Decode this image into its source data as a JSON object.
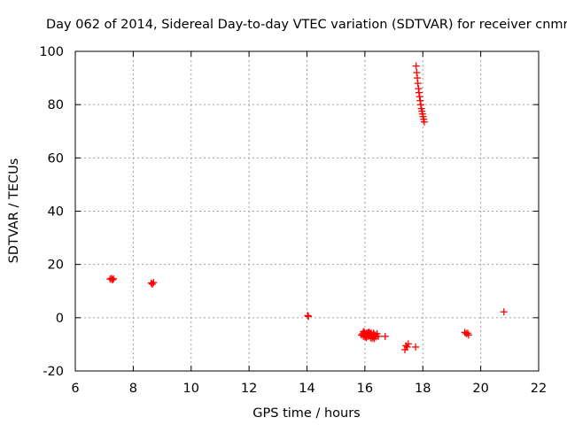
{
  "chart_data": {
    "type": "scatter",
    "title": "Day 062 of 2014, Sidereal Day-to-day VTEC variation (SDTVAR) for receiver cnmr",
    "xlabel": "GPS time / hours",
    "ylabel": "SDTVAR / TECUs",
    "xlim": [
      6,
      22
    ],
    "ylim": [
      -20,
      100
    ],
    "xticks": [
      "6",
      "8",
      "10",
      "12",
      "14",
      "16",
      "18",
      "20",
      "22"
    ],
    "yticks": [
      "-20",
      "0",
      "20",
      "40",
      "60",
      "80",
      "100"
    ],
    "grid": true,
    "marker": "plus",
    "color": "#ff0000",
    "series": [
      {
        "name": "SDTVAR",
        "x": [
          7.2,
          7.25,
          7.28,
          7.32,
          8.62,
          8.66,
          8.7,
          14.03,
          14.05,
          15.88,
          15.92,
          15.95,
          15.98,
          16.0,
          16.02,
          16.05,
          16.08,
          16.1,
          16.12,
          16.15,
          16.18,
          16.2,
          16.22,
          16.25,
          16.28,
          16.3,
          16.32,
          16.35,
          16.38,
          16.42,
          16.46,
          15.95,
          16.0,
          16.05,
          16.1,
          16.15,
          16.2,
          16.25,
          16.3,
          16.35,
          16.0,
          16.1,
          16.2,
          16.3,
          16.7,
          17.38,
          17.42,
          17.46,
          17.5,
          17.75,
          17.77,
          17.79,
          17.81,
          17.83,
          17.85,
          17.87,
          17.89,
          17.91,
          17.93,
          17.95,
          17.97,
          17.99,
          18.01,
          18.03,
          18.05,
          19.45,
          19.5,
          19.55,
          19.58,
          20.8
        ],
        "y": [
          14.5,
          14.8,
          14.2,
          14.6,
          13.0,
          12.6,
          13.2,
          0.8,
          0.5,
          -6.5,
          -6.0,
          -7.0,
          -5.5,
          -6.5,
          -7.2,
          -5.8,
          -6.3,
          -7.0,
          -5.5,
          -6.8,
          -6.0,
          -7.5,
          -5.8,
          -6.5,
          -7.0,
          -6.2,
          -7.8,
          -6.5,
          -7.2,
          -6.0,
          -7.0,
          -5.2,
          -6.0,
          -7.5,
          -6.8,
          -5.5,
          -6.2,
          -7.8,
          -5.8,
          -6.8,
          -6.8,
          -5.8,
          -6.5,
          -7.2,
          -7.0,
          -12.0,
          -10.5,
          -11.0,
          -9.8,
          -11.0,
          94.5,
          92.0,
          90.0,
          88.0,
          86.0,
          84.5,
          83.0,
          81.5,
          80.0,
          78.5,
          77.5,
          76.5,
          75.5,
          74.5,
          73.5,
          -5.5,
          -6.0,
          -5.8,
          -6.5,
          2.2
        ]
      }
    ]
  }
}
